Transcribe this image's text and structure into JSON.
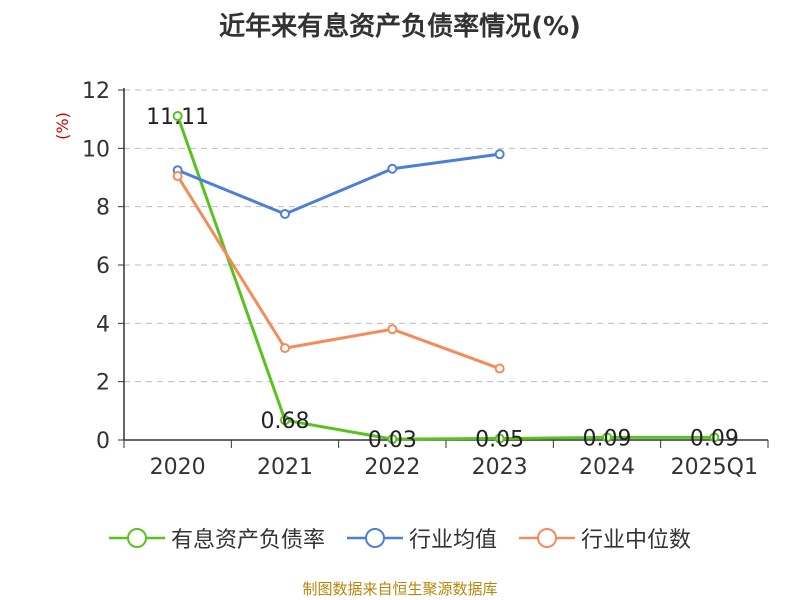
{
  "chart_data": {
    "type": "line",
    "title": "近年来有息资产负债率情况(%)",
    "ylabel": "(%)",
    "categories": [
      "2020",
      "2021",
      "2022",
      "2023",
      "2024",
      "2025Q1"
    ],
    "ylim": [
      0,
      12
    ],
    "yticks": [
      "0",
      "2",
      "4",
      "6",
      "8",
      "10",
      "12"
    ],
    "grid": true,
    "legend_position": "bottom",
    "series": [
      {
        "name": "有息资产负债率",
        "color": "#5ac21f",
        "values": [
          11.11,
          0.68,
          0.03,
          0.05,
          0.09,
          0.09
        ],
        "labels": [
          "11.11",
          "0.68",
          "0.03",
          "0.05",
          "0.09",
          "0.09"
        ]
      },
      {
        "name": "行业均值",
        "color": "#4c7fd9",
        "values": [
          9.25,
          7.75,
          9.3,
          9.8,
          null,
          null
        ]
      },
      {
        "name": "行业中位数",
        "color": "#f48c5a",
        "values": [
          9.05,
          3.15,
          3.8,
          2.45,
          null,
          null
        ]
      }
    ]
  },
  "source_text": "制图数据来自恒生聚源数据库"
}
